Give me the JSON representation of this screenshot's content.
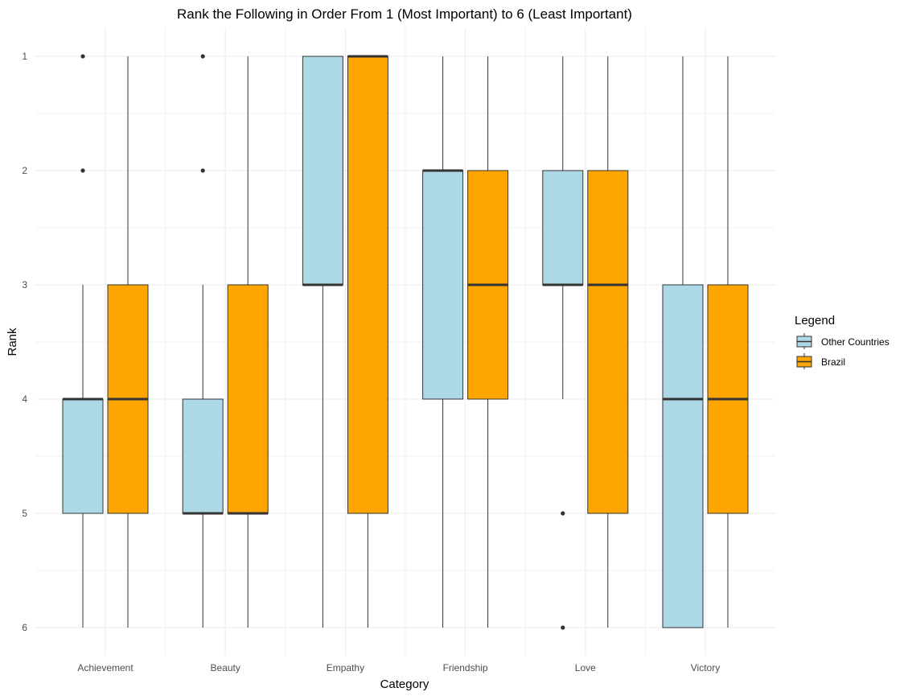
{
  "chart_data": {
    "type": "boxplot",
    "title": "Rank the Following in Order From 1 (Most Important) to 6 (Least Important)",
    "xlabel": "Category",
    "ylabel": "Rank",
    "y_reversed": true,
    "ylim": [
      1,
      6
    ],
    "yticks": [
      "1",
      "2",
      "3",
      "4",
      "5",
      "6"
    ],
    "categories": [
      "Achievement",
      "Beauty",
      "Empathy",
      "Friendship",
      "Love",
      "Victory"
    ],
    "legend": {
      "title": "Legend",
      "position": "right",
      "entries": [
        "Other Countries",
        "Brazil"
      ]
    },
    "grid": true,
    "series": [
      {
        "name": "Other Countries",
        "color": "#add8e6",
        "boxes": [
          {
            "category": "Achievement",
            "whisker_low": 3,
            "q1": 4,
            "median": 4,
            "q3": 5,
            "whisker_high": 6,
            "outliers": [
              1,
              2
            ]
          },
          {
            "category": "Beauty",
            "whisker_low": 3,
            "q1": 4,
            "median": 5,
            "q3": 5,
            "whisker_high": 6,
            "outliers": [
              1,
              2
            ]
          },
          {
            "category": "Empathy",
            "whisker_low": 1,
            "q1": 1,
            "median": 3,
            "q3": 3,
            "whisker_high": 6,
            "outliers": []
          },
          {
            "category": "Friendship",
            "whisker_low": 1,
            "q1": 2,
            "median": 2,
            "q3": 4,
            "whisker_high": 6,
            "outliers": []
          },
          {
            "category": "Love",
            "whisker_low": 1,
            "q1": 2,
            "median": 3,
            "q3": 3,
            "whisker_high": 4,
            "outliers": [
              5,
              6
            ]
          },
          {
            "category": "Victory",
            "whisker_low": 1,
            "q1": 3,
            "median": 4,
            "q3": 6,
            "whisker_high": 6,
            "outliers": []
          }
        ]
      },
      {
        "name": "Brazil",
        "color": "#ffa500",
        "boxes": [
          {
            "category": "Achievement",
            "whisker_low": 1,
            "q1": 3,
            "median": 4,
            "q3": 5,
            "whisker_high": 6,
            "outliers": []
          },
          {
            "category": "Beauty",
            "whisker_low": 1,
            "q1": 3,
            "median": 5,
            "q3": 5,
            "whisker_high": 6,
            "outliers": []
          },
          {
            "category": "Empathy",
            "whisker_low": 1,
            "q1": 1,
            "median": 1,
            "q3": 5,
            "whisker_high": 6,
            "outliers": []
          },
          {
            "category": "Friendship",
            "whisker_low": 1,
            "q1": 2,
            "median": 3,
            "q3": 4,
            "whisker_high": 6,
            "outliers": []
          },
          {
            "category": "Love",
            "whisker_low": 1,
            "q1": 2,
            "median": 3,
            "q3": 5,
            "whisker_high": 6,
            "outliers": []
          },
          {
            "category": "Victory",
            "whisker_low": 1,
            "q1": 3,
            "median": 4,
            "q3": 5,
            "whisker_high": 6,
            "outliers": []
          }
        ]
      }
    ]
  }
}
